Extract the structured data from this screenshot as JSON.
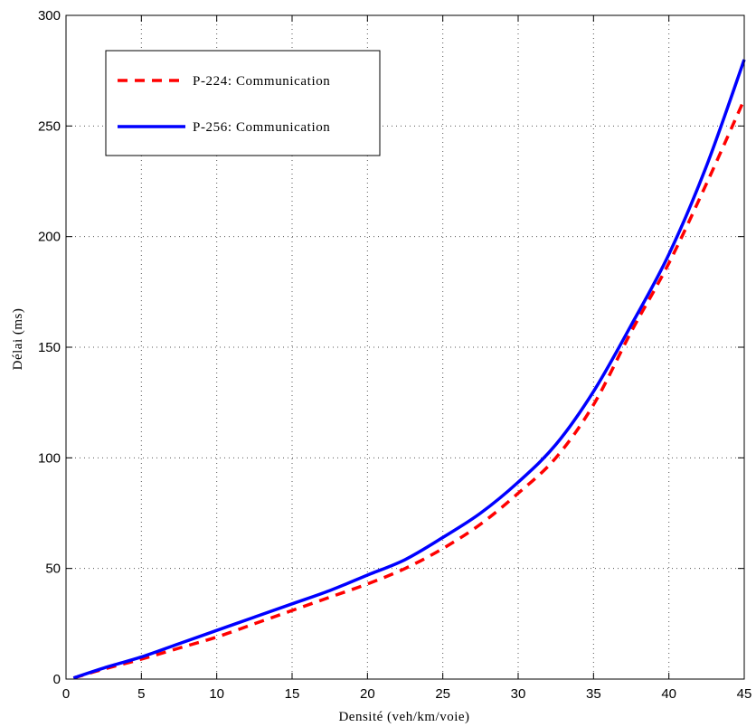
{
  "chart_data": {
    "type": "line",
    "title": "",
    "xlabel": "Densité (veh/km/voie)",
    "ylabel": "Délai (ms)",
    "xlim": [
      0,
      45
    ],
    "ylim": [
      0,
      300
    ],
    "xticks": [
      0,
      5,
      10,
      15,
      20,
      25,
      30,
      35,
      40,
      45
    ],
    "yticks": [
      0,
      50,
      100,
      150,
      200,
      250,
      300
    ],
    "grid": true,
    "legend_position": "top-left",
    "series": [
      {
        "name": "P-224: Communication",
        "color": "#ff0000",
        "style": "dashed",
        "x": [
          0.5,
          2.5,
          5,
          7.5,
          10,
          12.5,
          15,
          17.5,
          20,
          22.5,
          25,
          27.5,
          30,
          32.5,
          35,
          37.5,
          40,
          42.5,
          45
        ],
        "y": [
          0.5,
          4.5,
          9,
          14,
          19,
          25,
          31,
          37,
          43,
          50,
          59,
          70,
          84,
          100,
          124,
          157,
          188,
          224,
          262
        ]
      },
      {
        "name": "P-256: Communication",
        "color": "#0000ff",
        "style": "solid",
        "x": [
          0.5,
          2.5,
          5,
          7.5,
          10,
          12.5,
          15,
          17.5,
          20,
          22.5,
          25,
          27.5,
          30,
          32.5,
          35,
          37.5,
          40,
          42.5,
          45
        ],
        "y": [
          0.5,
          5,
          10,
          16,
          22,
          28,
          34,
          40,
          47,
          54,
          64,
          75,
          89,
          106,
          130,
          160,
          192,
          232,
          280
        ]
      }
    ]
  }
}
